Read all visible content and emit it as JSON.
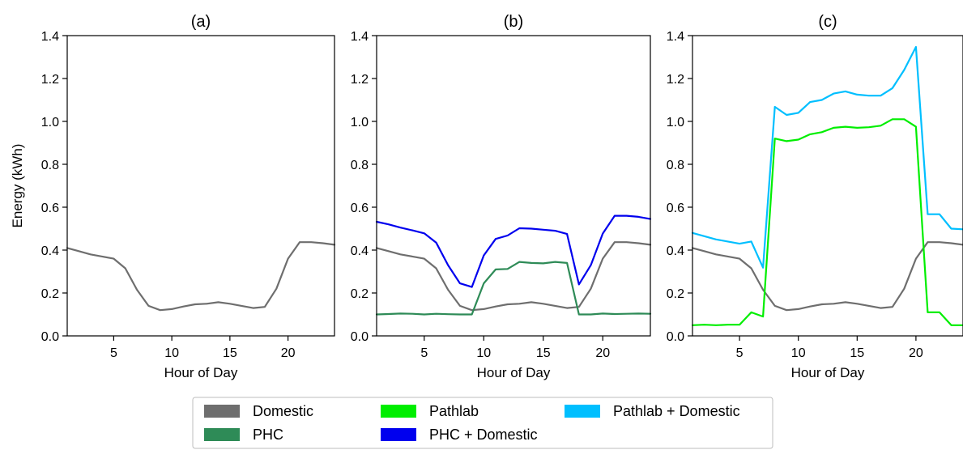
{
  "chart_data": [
    {
      "type": "line",
      "title": "(a)",
      "xlabel": "Hour of Day",
      "ylabel": "Energy (kWh)",
      "xlim": [
        1,
        24
      ],
      "ylim": [
        0,
        1.4
      ],
      "xticks": [
        "5",
        "10",
        "15",
        "20"
      ],
      "yticks": [
        "0.0",
        "0.2",
        "0.4",
        "0.6",
        "0.8",
        "1.0",
        "1.2",
        "1.4"
      ],
      "x": [
        1,
        2,
        3,
        4,
        5,
        6,
        7,
        8,
        9,
        10,
        11,
        12,
        13,
        14,
        15,
        16,
        17,
        18,
        19,
        20,
        21,
        22,
        23,
        24
      ],
      "series": [
        {
          "name": "Domestic",
          "color": "#6e6e6e",
          "values": [
            0.41,
            0.395,
            0.38,
            0.37,
            0.36,
            0.315,
            0.215,
            0.14,
            0.12,
            0.125,
            0.137,
            0.147,
            0.15,
            0.157,
            0.15,
            0.14,
            0.13,
            0.135,
            0.22,
            0.36,
            0.437,
            0.437,
            0.432,
            0.425
          ]
        }
      ]
    },
    {
      "type": "line",
      "title": "(b)",
      "xlabel": "Hour of Day",
      "ylabel": "",
      "xlim": [
        1,
        24
      ],
      "ylim": [
        0,
        1.4
      ],
      "xticks": [
        "5",
        "10",
        "15",
        "20"
      ],
      "yticks": [
        "0.0",
        "0.2",
        "0.4",
        "0.6",
        "0.8",
        "1.0",
        "1.2",
        "1.4"
      ],
      "x": [
        1,
        2,
        3,
        4,
        5,
        6,
        7,
        8,
        9,
        10,
        11,
        12,
        13,
        14,
        15,
        16,
        17,
        18,
        19,
        20,
        21,
        22,
        23,
        24
      ],
      "series": [
        {
          "name": "Domestic",
          "color": "#6e6e6e",
          "values": [
            0.41,
            0.395,
            0.38,
            0.37,
            0.36,
            0.315,
            0.215,
            0.14,
            0.12,
            0.125,
            0.137,
            0.147,
            0.15,
            0.157,
            0.15,
            0.14,
            0.13,
            0.135,
            0.22,
            0.36,
            0.437,
            0.437,
            0.432,
            0.425
          ]
        },
        {
          "name": "PHC",
          "color": "#2e8b57",
          "values": [
            0.1,
            0.102,
            0.104,
            0.103,
            0.1,
            0.103,
            0.101,
            0.1,
            0.1,
            0.245,
            0.31,
            0.312,
            0.345,
            0.34,
            0.338,
            0.345,
            0.34,
            0.1,
            0.1,
            0.104,
            0.102,
            0.103,
            0.104,
            0.103
          ]
        },
        {
          "name": "PHC + Domestic",
          "color": "#0000ee",
          "values": [
            0.532,
            0.52,
            0.505,
            0.492,
            0.478,
            0.435,
            0.33,
            0.245,
            0.228,
            0.375,
            0.452,
            0.468,
            0.502,
            0.5,
            0.495,
            0.49,
            0.475,
            0.24,
            0.33,
            0.477,
            0.56,
            0.56,
            0.555,
            0.545
          ]
        }
      ]
    },
    {
      "type": "line",
      "title": "(c)",
      "xlabel": "Hour of Day",
      "ylabel": "",
      "xlim": [
        1,
        24
      ],
      "ylim": [
        0,
        1.4
      ],
      "xticks": [
        "5",
        "10",
        "15",
        "20"
      ],
      "yticks": [
        "0.0",
        "0.2",
        "0.4",
        "0.6",
        "0.8",
        "1.0",
        "1.2",
        "1.4"
      ],
      "x": [
        1,
        2,
        3,
        4,
        5,
        6,
        7,
        8,
        9,
        10,
        11,
        12,
        13,
        14,
        15,
        16,
        17,
        18,
        19,
        20,
        21,
        22,
        23,
        24
      ],
      "series": [
        {
          "name": "Domestic",
          "color": "#6e6e6e",
          "values": [
            0.41,
            0.395,
            0.38,
            0.37,
            0.36,
            0.315,
            0.215,
            0.14,
            0.12,
            0.125,
            0.137,
            0.147,
            0.15,
            0.157,
            0.15,
            0.14,
            0.13,
            0.135,
            0.22,
            0.36,
            0.437,
            0.437,
            0.432,
            0.425
          ]
        },
        {
          "name": "Pathlab",
          "color": "#00ee00",
          "values": [
            0.05,
            0.052,
            0.05,
            0.052,
            0.052,
            0.11,
            0.09,
            0.92,
            0.908,
            0.915,
            0.94,
            0.95,
            0.97,
            0.975,
            0.97,
            0.973,
            0.98,
            1.01,
            1.01,
            0.975,
            0.11,
            0.11,
            0.05,
            0.05
          ]
        },
        {
          "name": "Pathlab + Domestic",
          "color": "#00bfff",
          "values": [
            0.48,
            0.465,
            0.45,
            0.44,
            0.43,
            0.44,
            0.318,
            1.068,
            1.03,
            1.04,
            1.09,
            1.1,
            1.13,
            1.14,
            1.125,
            1.12,
            1.12,
            1.155,
            1.24,
            1.347,
            0.567,
            0.567,
            0.5,
            0.497
          ]
        }
      ]
    }
  ],
  "legend": {
    "placement": "bottom-center",
    "items": [
      {
        "label": "Domestic",
        "color": "#6e6e6e"
      },
      {
        "label": "Pathlab",
        "color": "#00ee00"
      },
      {
        "label": "Pathlab + Domestic",
        "color": "#00bfff"
      },
      {
        "label": "PHC",
        "color": "#2e8b57"
      },
      {
        "label": "PHC + Domestic",
        "color": "#0000ee"
      }
    ]
  }
}
